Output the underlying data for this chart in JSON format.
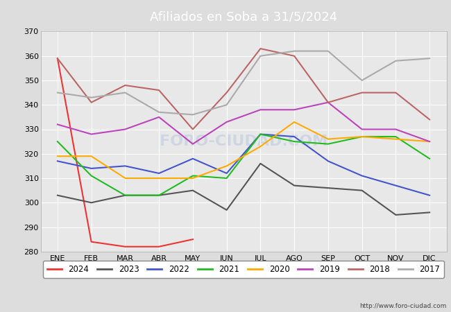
{
  "title": "Afiliados en Soba a 31/5/2024",
  "ylim": [
    280,
    370
  ],
  "yticks": [
    280,
    290,
    300,
    310,
    320,
    330,
    340,
    350,
    360,
    370
  ],
  "months": [
    "ENE",
    "FEB",
    "MAR",
    "ABR",
    "MAY",
    "JUN",
    "JUL",
    "AGO",
    "SEP",
    "OCT",
    "NOV",
    "DIC"
  ],
  "series": {
    "2024": {
      "color": "#ee3333",
      "values": [
        359,
        284,
        282,
        282,
        285,
        null,
        null,
        null,
        null,
        null,
        null,
        null
      ]
    },
    "2023": {
      "color": "#555555",
      "values": [
        303,
        300,
        303,
        303,
        305,
        297,
        316,
        307,
        306,
        305,
        295,
        296
      ]
    },
    "2022": {
      "color": "#4455cc",
      "values": [
        317,
        314,
        315,
        312,
        318,
        312,
        328,
        327,
        317,
        311,
        307,
        303
      ]
    },
    "2021": {
      "color": "#22bb22",
      "values": [
        325,
        311,
        303,
        303,
        311,
        310,
        328,
        325,
        324,
        327,
        327,
        318
      ]
    },
    "2020": {
      "color": "#ffaa00",
      "values": [
        319,
        319,
        310,
        310,
        310,
        315,
        323,
        333,
        326,
        327,
        326,
        325
      ]
    },
    "2019": {
      "color": "#bb44bb",
      "values": [
        332,
        328,
        330,
        335,
        324,
        333,
        338,
        338,
        341,
        330,
        330,
        325
      ]
    },
    "2018": {
      "color": "#bb6666",
      "values": [
        359,
        341,
        348,
        346,
        330,
        345,
        363,
        360,
        341,
        345,
        345,
        334
      ]
    },
    "2017": {
      "color": "#aaaaaa",
      "values": [
        345,
        343,
        345,
        337,
        336,
        340,
        360,
        362,
        362,
        350,
        358,
        359
      ]
    }
  },
  "legend_order": [
    "2024",
    "2023",
    "2022",
    "2021",
    "2020",
    "2019",
    "2018",
    "2017"
  ],
  "fig_bg_color": "#dddddd",
  "plot_bg_color": "#e8e8e8",
  "grid_color": "#ffffff",
  "title_bg": "#4477cc",
  "title_fg": "#ffffff",
  "url": "http://www.foro-ciudad.com",
  "watermark": "FORO-CIUDAD.COM"
}
